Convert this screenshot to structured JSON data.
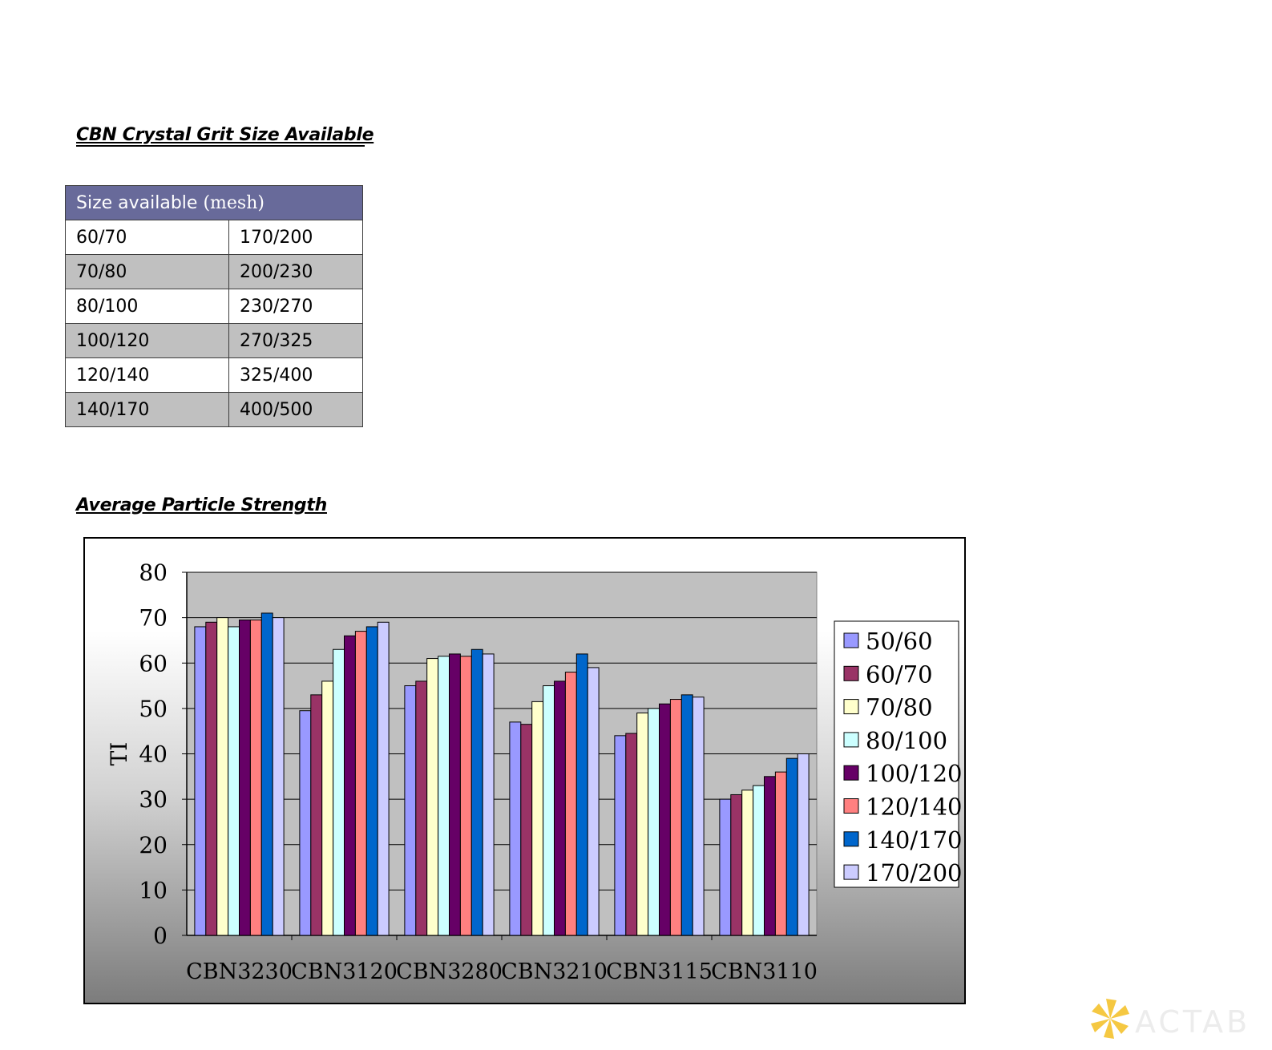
{
  "grit_section": {
    "title": "CBN Crystal Grit Size Available",
    "table_header_main": "Size available ",
    "table_header_unit": "(mesh)",
    "rows": [
      [
        "60/70",
        "170/200"
      ],
      [
        "70/80",
        "200/230"
      ],
      [
        "80/100",
        "230/270"
      ],
      [
        "100/120",
        "270/325"
      ],
      [
        "120/140",
        "325/400"
      ],
      [
        "140/170",
        "400/500"
      ]
    ]
  },
  "strength_section": {
    "title": "Average Particle Strength"
  },
  "chart_data": {
    "type": "bar",
    "title": "",
    "xlabel": "",
    "ylabel": "TI",
    "ylim": [
      0,
      80
    ],
    "yticks": [
      0,
      10,
      20,
      30,
      40,
      50,
      60,
      70,
      80
    ],
    "grid": true,
    "legend_position": "right",
    "categories": [
      "CBN3230",
      "CBN3120",
      "CBN3280",
      "CBN3210",
      "CBN3115",
      "CBN3110"
    ],
    "series": [
      {
        "name": "50/60",
        "color": "#9999ff",
        "values": [
          68,
          49.5,
          55,
          47,
          44,
          30
        ]
      },
      {
        "name": "60/70",
        "color": "#993366",
        "values": [
          69,
          53,
          56,
          46.5,
          44.5,
          31
        ]
      },
      {
        "name": "70/80",
        "color": "#ffffcc",
        "values": [
          70,
          56,
          61,
          51.5,
          49,
          32
        ]
      },
      {
        "name": "80/100",
        "color": "#ccffff",
        "values": [
          68,
          63,
          61.5,
          55,
          50,
          33
        ]
      },
      {
        "name": "100/120",
        "color": "#660066",
        "values": [
          69.5,
          66,
          62,
          56,
          51,
          35
        ]
      },
      {
        "name": "120/140",
        "color": "#ff8080",
        "values": [
          69.5,
          67,
          61.5,
          58,
          52,
          36
        ]
      },
      {
        "name": "140/170",
        "color": "#0066cc",
        "values": [
          71,
          68,
          63,
          62,
          53,
          39
        ]
      },
      {
        "name": "170/200",
        "color": "#ccccff",
        "values": [
          70,
          69,
          62,
          59,
          52.5,
          40
        ]
      }
    ]
  },
  "logo": {
    "text": "ACTAB"
  }
}
